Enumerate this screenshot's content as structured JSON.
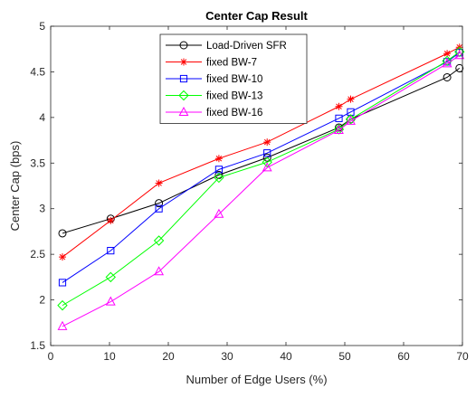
{
  "chart_data": {
    "type": "line",
    "title": "Center Cap Result",
    "xlabel": "Number of Edge Users (%)",
    "ylabel": "Center Cap (bps)",
    "xlim": [
      0,
      70
    ],
    "ylim": [
      1.5,
      5
    ],
    "x_ticks": [
      0,
      10,
      20,
      30,
      40,
      50,
      60,
      70
    ],
    "y_ticks": [
      1.5,
      2,
      2.5,
      3,
      3.5,
      4,
      4.5,
      5
    ],
    "x_tick_labels": [
      "0",
      "10",
      "20",
      "30",
      "40",
      "50",
      "60",
      "70"
    ],
    "y_tick_labels": [
      "1.5",
      "2",
      "2.5",
      "3",
      "3.5",
      "4",
      "4.5",
      "5"
    ],
    "grid": false,
    "legend_position": "top-center",
    "x": [
      2,
      10.2,
      18.4,
      28.6,
      36.8,
      49,
      51,
      67.4,
      69.5
    ],
    "series": [
      {
        "name": "Load-Driven SFR",
        "color": "#000000",
        "marker": "circle",
        "values": [
          2.73,
          2.89,
          3.06,
          3.37,
          3.56,
          3.89,
          3.98,
          4.44,
          4.54
        ]
      },
      {
        "name": "fixed BW-7",
        "color": "#ff0000",
        "marker": "asterisk",
        "values": [
          2.47,
          2.87,
          3.28,
          3.55,
          3.73,
          4.12,
          4.2,
          4.7,
          4.77
        ]
      },
      {
        "name": "fixed BW-10",
        "color": "#0000ff",
        "marker": "square",
        "values": [
          2.19,
          2.54,
          3.0,
          3.43,
          3.61,
          3.99,
          4.06,
          4.61,
          4.71
        ]
      },
      {
        "name": "fixed BW-13",
        "color": "#00ff00",
        "marker": "diamond",
        "values": [
          1.94,
          2.25,
          2.65,
          3.34,
          3.51,
          3.87,
          3.98,
          4.62,
          4.72
        ]
      },
      {
        "name": "fixed BW-16",
        "color": "#ff00ff",
        "marker": "triangle",
        "values": [
          1.71,
          1.98,
          2.31,
          2.94,
          3.45,
          3.86,
          3.96,
          4.59,
          4.68
        ]
      }
    ]
  }
}
